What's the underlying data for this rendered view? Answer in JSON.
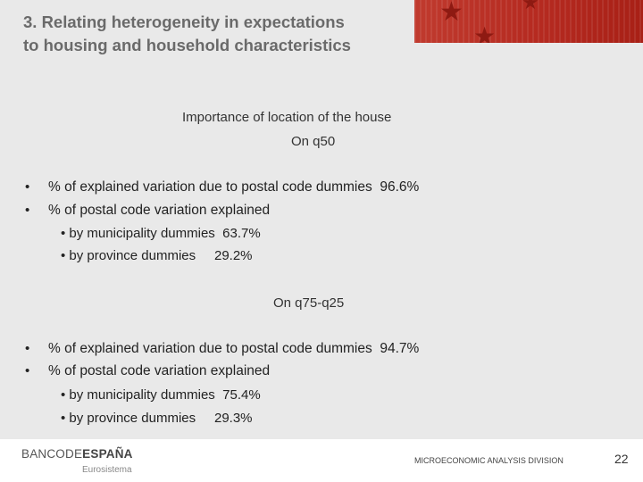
{
  "slide": {
    "title_line1": "3. Relating heterogeneity in expectations",
    "title_line2": "to housing and household characteristics",
    "subtitle": "Importance of location of the house",
    "section1": {
      "heading": "On q50",
      "bullets": [
        "% of explained variation due to postal code dummies  96.6%",
        "% of postal code variation explained"
      ],
      "sub_bullets": [
        "• by municipality dummies  63.7%",
        "• by province dummies     29.2%"
      ]
    },
    "section2": {
      "heading": "On q75-q25",
      "bullets": [
        "% of explained variation due to postal code dummies  94.7%",
        "% of postal code variation explained"
      ],
      "sub_bullets": [
        "• by municipality dummies  75.4%",
        "• by province dummies     29.3%"
      ]
    },
    "bullet_marker": "•"
  },
  "footer": {
    "logo_light": "BANCODE",
    "logo_bold": "ESPAÑA",
    "logo_sub": "Eurosistema",
    "division": "MICROECONOMIC ANALYSIS DIVISION",
    "page_number": "22"
  },
  "colors": {
    "banner_red": "#b52a20",
    "title_gray": "#6a6a6a",
    "background": "#e9e9e9"
  }
}
